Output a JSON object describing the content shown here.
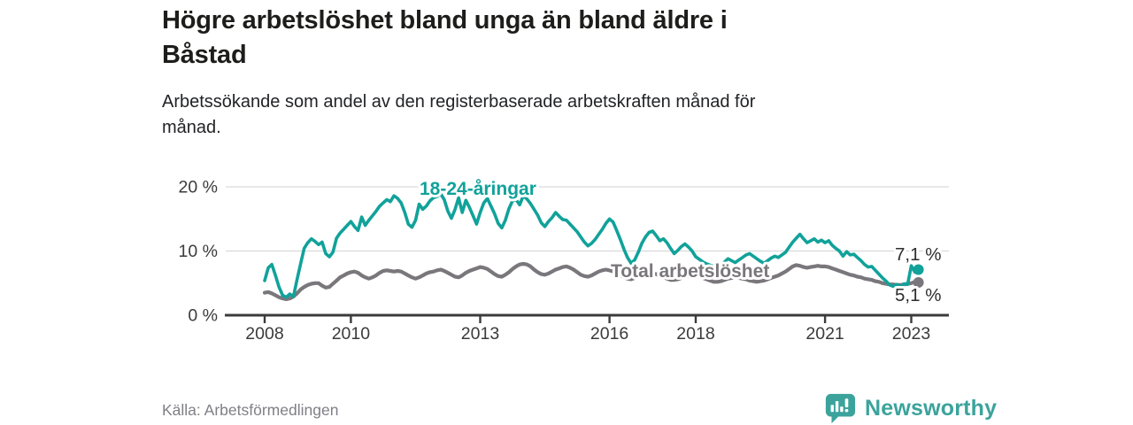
{
  "header": {
    "title_lines": [
      "Högre arbetslöshet bland unga än bland äldre i",
      "Båstad"
    ],
    "subtitle_lines": [
      "Arbetssökande som andel av den registerbaserade arbetskraften månad för",
      "månad."
    ]
  },
  "footer": {
    "source": "Källa: Arbetsförmedlingen",
    "brand_name": "Newsworthy",
    "logo_icon": "bar-chart-speech-bubble-icon"
  },
  "colors": {
    "youth_line": "#11a29a",
    "total_line": "#7a777c",
    "axis": "#3b3b3b",
    "grid": "#d9d9d9",
    "title_text": "#1d1d1b",
    "muted_text": "#807e86",
    "brand": "#3ba39c"
  },
  "chart_data": {
    "type": "line",
    "title": "Högre arbetslöshet bland unga än bland äldre i Båstad",
    "subtitle": "Arbetssökande som andel av den registerbaserade arbetskraften månad för månad.",
    "source": "Källa: Arbetsförmedlingen",
    "frequency": "monthly",
    "start_month": "2008-01",
    "end_month": "2023-03",
    "unit": "%",
    "ylim": [
      0,
      21.5
    ],
    "grid": true,
    "legend_position": "inline-labels",
    "y_ticks": [
      {
        "value": 0,
        "label": "0 %"
      },
      {
        "value": 10,
        "label": "10 %"
      },
      {
        "value": 20,
        "label": "20 %"
      }
    ],
    "x_ticks": [
      {
        "value": 2008,
        "label": "2008"
      },
      {
        "value": 2010,
        "label": "2010"
      },
      {
        "value": 2013,
        "label": "2013"
      },
      {
        "value": 2016,
        "label": "2016"
      },
      {
        "value": 2018,
        "label": "2018"
      },
      {
        "value": 2021,
        "label": "2021"
      },
      {
        "value": 2023,
        "label": "2023"
      }
    ],
    "series": [
      {
        "name": "18-24-åringar",
        "color": "#11a29a",
        "end_label": "7,1 %",
        "end_value": 7.1,
        "values": [
          5.4,
          7.4,
          7.9,
          6.2,
          4.4,
          3.1,
          2.8,
          3.3,
          2.9,
          5.5,
          8.0,
          10.4,
          11.3,
          11.9,
          11.5,
          11.0,
          11.4,
          9.6,
          9.1,
          9.8,
          12.0,
          12.8,
          13.4,
          14.0,
          14.6,
          13.8,
          13.2,
          15.3,
          14.0,
          14.8,
          15.5,
          16.2,
          17.0,
          17.5,
          18.0,
          17.7,
          18.6,
          18.2,
          17.5,
          16.0,
          14.2,
          13.7,
          14.8,
          17.3,
          16.5,
          17.0,
          17.8,
          18.3,
          18.5,
          18.9,
          18.0,
          16.2,
          15.1,
          16.5,
          18.3,
          16.0,
          17.9,
          16.8,
          15.5,
          14.2,
          16.0,
          17.5,
          18.2,
          17.0,
          15.8,
          14.3,
          13.6,
          14.8,
          16.6,
          17.8,
          18.0,
          17.2,
          18.6,
          18.1,
          17.4,
          16.5,
          15.6,
          14.4,
          13.8,
          14.6,
          15.2,
          16.0,
          15.4,
          14.9,
          14.8,
          14.2,
          13.6,
          13.0,
          12.2,
          11.4,
          10.8,
          11.2,
          11.8,
          12.6,
          13.4,
          14.3,
          15.0,
          14.5,
          13.2,
          11.8,
          10.3,
          9.0,
          8.1,
          8.6,
          9.8,
          11.2,
          12.2,
          12.9,
          13.1,
          12.4,
          11.6,
          11.9,
          11.3,
          10.4,
          9.6,
          10.1,
          10.7,
          11.1,
          10.6,
          10.0,
          9.1,
          8.7,
          8.3,
          8.0,
          7.8,
          7.6,
          7.5,
          7.7,
          8.3,
          8.8,
          8.5,
          8.2,
          8.6,
          9.0,
          9.4,
          9.6,
          9.2,
          8.8,
          8.4,
          8.1,
          8.5,
          8.9,
          9.2,
          9.0,
          9.4,
          9.8,
          10.6,
          11.4,
          12.0,
          12.6,
          11.9,
          11.3,
          11.6,
          11.9,
          11.4,
          11.7,
          11.3,
          11.6,
          10.9,
          10.4,
          10.0,
          9.2,
          9.9,
          9.4,
          9.5,
          9.0,
          8.5,
          7.9,
          7.5,
          7.6,
          7.0,
          6.4,
          5.8,
          5.3,
          4.7,
          4.5,
          4.8,
          4.4,
          4.9,
          4.8,
          7.7,
          6.7,
          7.1
        ]
      },
      {
        "name": "Total arbetslöshet",
        "color": "#7a777c",
        "end_label": "5,1 %",
        "end_value": 5.1,
        "values": [
          3.5,
          3.6,
          3.4,
          3.1,
          2.8,
          2.6,
          2.5,
          2.6,
          2.9,
          3.4,
          4.0,
          4.4,
          4.7,
          4.9,
          5.0,
          5.0,
          4.6,
          4.3,
          4.4,
          4.9,
          5.4,
          5.9,
          6.2,
          6.5,
          6.7,
          6.8,
          6.6,
          6.2,
          5.9,
          5.7,
          5.9,
          6.2,
          6.6,
          6.9,
          7.0,
          6.9,
          6.8,
          6.9,
          6.8,
          6.5,
          6.2,
          5.9,
          5.7,
          5.9,
          6.2,
          6.5,
          6.7,
          6.8,
          7.0,
          7.1,
          6.9,
          6.6,
          6.3,
          6.0,
          5.9,
          6.2,
          6.6,
          6.9,
          7.1,
          7.3,
          7.5,
          7.4,
          7.2,
          6.8,
          6.4,
          6.1,
          6.0,
          6.3,
          6.7,
          7.2,
          7.6,
          7.9,
          8.0,
          7.9,
          7.6,
          7.1,
          6.7,
          6.4,
          6.3,
          6.5,
          6.8,
          7.1,
          7.3,
          7.5,
          7.6,
          7.4,
          7.1,
          6.7,
          6.3,
          6.1,
          6.0,
          6.2,
          6.5,
          6.8,
          7.0,
          7.1,
          7.0,
          6.8,
          6.5,
          6.2,
          5.9,
          5.7,
          5.6,
          5.8,
          6.0,
          6.2,
          6.4,
          6.5,
          6.5,
          6.4,
          6.2,
          5.9,
          5.7,
          5.5,
          5.5,
          5.6,
          5.8,
          6.0,
          6.1,
          6.2,
          6.1,
          6.0,
          5.8,
          5.6,
          5.4,
          5.2,
          5.2,
          5.3,
          5.5,
          5.7,
          5.8,
          5.9,
          5.8,
          5.7,
          5.6,
          5.4,
          5.3,
          5.2,
          5.3,
          5.4,
          5.6,
          5.8,
          6.0,
          6.2,
          6.5,
          6.8,
          7.2,
          7.6,
          7.8,
          7.7,
          7.5,
          7.4,
          7.5,
          7.6,
          7.7,
          7.6,
          7.6,
          7.5,
          7.3,
          7.1,
          6.9,
          6.7,
          6.5,
          6.3,
          6.2,
          6.0,
          5.9,
          5.7,
          5.6,
          5.5,
          5.3,
          5.2,
          5.0,
          4.9,
          4.8,
          4.8,
          4.7,
          4.7,
          4.8,
          4.9,
          5.0,
          5.2,
          5.1
        ]
      }
    ]
  }
}
